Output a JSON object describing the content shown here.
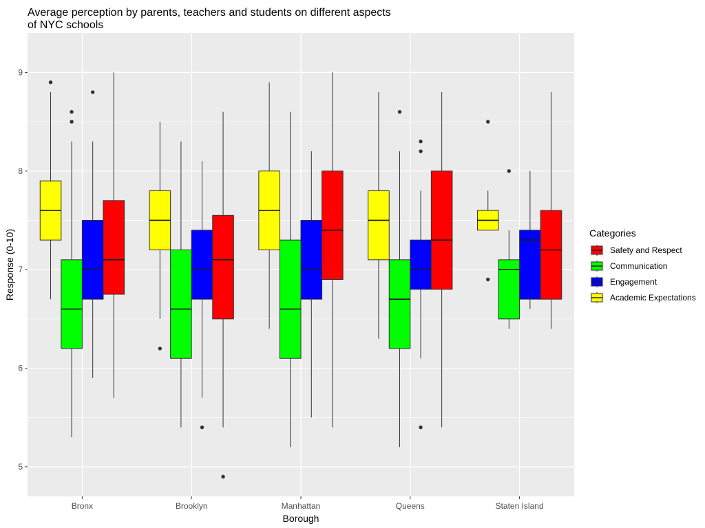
{
  "chart_data": {
    "type": "boxplot",
    "title_lines": [
      "Average perception by parents, teachers and students on different aspects",
      "of NYC schools"
    ],
    "xlabel": "Borough",
    "ylabel": "Response (0-10)",
    "ylim": [
      4.7,
      9.4
    ],
    "yticks": [
      5,
      6,
      7,
      8,
      9
    ],
    "ytick_labels": [
      "5",
      "6",
      "7",
      "8",
      "9"
    ],
    "grid": true,
    "categories": [
      "Bronx",
      "Brooklyn",
      "Manhattan",
      "Queens",
      "Staten Island"
    ],
    "legend": {
      "title": "Categories",
      "position": "right",
      "order": [
        "Safety and Respect",
        "Communication",
        "Engagement",
        "Academic Expectations"
      ]
    },
    "series": [
      {
        "name": "Academic Expectations",
        "color": "#ffff00",
        "boxes": [
          {
            "min": 6.7,
            "q1": 7.3,
            "median": 7.6,
            "q3": 7.9,
            "max": 8.8,
            "outliers": [
              8.9
            ]
          },
          {
            "min": 6.5,
            "q1": 7.2,
            "median": 7.5,
            "q3": 7.8,
            "max": 8.5,
            "outliers": [
              6.2
            ]
          },
          {
            "min": 6.4,
            "q1": 7.2,
            "median": 7.6,
            "q3": 8.0,
            "max": 8.9,
            "outliers": []
          },
          {
            "min": 6.3,
            "q1": 7.1,
            "median": 7.5,
            "q3": 7.8,
            "max": 8.8,
            "outliers": []
          },
          {
            "min": 7.4,
            "q1": 7.4,
            "median": 7.5,
            "q3": 7.6,
            "max": 7.8,
            "outliers": [
              8.5,
              6.9
            ]
          }
        ]
      },
      {
        "name": "Communication",
        "color": "#00ff00",
        "boxes": [
          {
            "min": 5.3,
            "q1": 6.2,
            "median": 6.6,
            "q3": 7.1,
            "max": 8.3,
            "outliers": [
              8.6,
              8.5
            ]
          },
          {
            "min": 5.4,
            "q1": 6.1,
            "median": 6.6,
            "q3": 7.2,
            "max": 8.3,
            "outliers": []
          },
          {
            "min": 5.2,
            "q1": 6.1,
            "median": 6.6,
            "q3": 7.3,
            "max": 8.6,
            "outliers": []
          },
          {
            "min": 5.2,
            "q1": 6.2,
            "median": 6.7,
            "q3": 7.1,
            "max": 8.2,
            "outliers": [
              8.6
            ]
          },
          {
            "min": 6.4,
            "q1": 6.5,
            "median": 7.0,
            "q3": 7.1,
            "max": 7.4,
            "outliers": [
              8.0
            ]
          }
        ]
      },
      {
        "name": "Engagement",
        "color": "#0000ff",
        "boxes": [
          {
            "min": 5.9,
            "q1": 6.7,
            "median": 7.0,
            "q3": 7.5,
            "max": 8.3,
            "outliers": [
              8.8
            ]
          },
          {
            "min": 5.7,
            "q1": 6.7,
            "median": 7.0,
            "q3": 7.4,
            "max": 8.1,
            "outliers": [
              5.4
            ]
          },
          {
            "min": 5.5,
            "q1": 6.7,
            "median": 7.0,
            "q3": 7.5,
            "max": 8.2,
            "outliers": []
          },
          {
            "min": 6.1,
            "q1": 6.8,
            "median": 7.0,
            "q3": 7.3,
            "max": 7.8,
            "outliers": [
              8.3,
              8.2,
              5.4
            ]
          },
          {
            "min": 6.6,
            "q1": 6.7,
            "median": 7.3,
            "q3": 7.4,
            "max": 8.0,
            "outliers": []
          }
        ]
      },
      {
        "name": "Safety and Respect",
        "color": "#ff0000",
        "boxes": [
          {
            "min": 5.7,
            "q1": 6.75,
            "median": 7.1,
            "q3": 7.7,
            "max": 9.0,
            "outliers": []
          },
          {
            "min": 5.4,
            "q1": 6.5,
            "median": 7.1,
            "q3": 7.55,
            "max": 8.6,
            "outliers": [
              4.9
            ]
          },
          {
            "min": 5.4,
            "q1": 6.9,
            "median": 7.4,
            "q3": 8.0,
            "max": 9.0,
            "outliers": []
          },
          {
            "min": 5.4,
            "q1": 6.8,
            "median": 7.3,
            "q3": 8.0,
            "max": 8.8,
            "outliers": []
          },
          {
            "min": 6.4,
            "q1": 6.7,
            "median": 7.2,
            "q3": 7.6,
            "max": 8.8,
            "outliers": []
          }
        ]
      }
    ]
  }
}
